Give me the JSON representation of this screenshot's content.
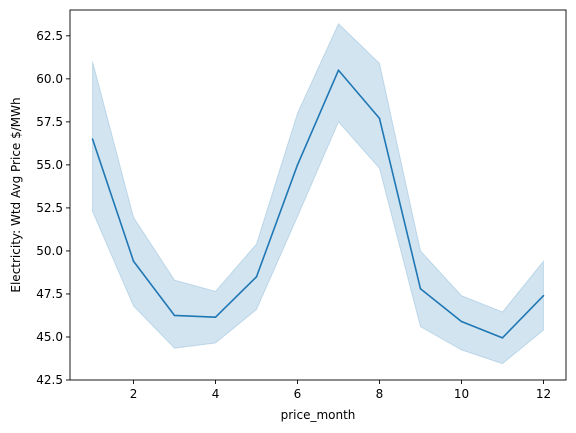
{
  "chart_data": {
    "type": "line",
    "title": "",
    "xlabel": "price_month",
    "ylabel": "Electricity: Wtd Avg Price $/MWh",
    "xlim": [
      0.45,
      12.55
    ],
    "ylim": [
      42.5,
      64.0
    ],
    "xticks": [
      2,
      4,
      6,
      8,
      10,
      12
    ],
    "yticks": [
      42.5,
      45.0,
      47.5,
      50.0,
      52.5,
      55.0,
      57.5,
      60.0,
      62.5
    ],
    "xtick_labels": [
      "2",
      "4",
      "6",
      "8",
      "10",
      "12"
    ],
    "ytick_labels": [
      "42.5",
      "45.0",
      "47.5",
      "50.0",
      "52.5",
      "55.0",
      "57.5",
      "60.0",
      "62.5"
    ],
    "grid": false,
    "series": [
      {
        "x": [
          1,
          2,
          3,
          4,
          5,
          6,
          7,
          8,
          9,
          10,
          11,
          12
        ],
        "y": [
          56.5,
          49.4,
          46.25,
          46.15,
          48.5,
          55.0,
          60.5,
          57.7,
          47.8,
          45.9,
          44.95,
          47.4
        ],
        "ci_low": [
          52.3,
          46.8,
          44.35,
          44.65,
          46.6,
          52.0,
          57.5,
          54.8,
          45.6,
          44.25,
          43.45,
          45.4
        ],
        "ci_high": [
          61.0,
          51.95,
          48.3,
          47.65,
          50.4,
          58.0,
          63.2,
          60.9,
          50.0,
          47.4,
          46.45,
          49.4
        ],
        "color": "#1f77b4"
      }
    ]
  }
}
